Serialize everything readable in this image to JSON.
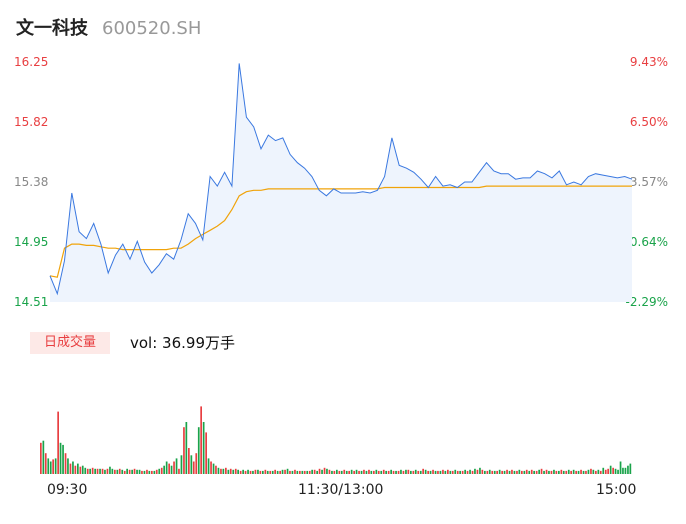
{
  "header": {
    "name": "文一科技",
    "code": "600520.SH"
  },
  "chart_data": {
    "type": "line",
    "price_axis": {
      "ticks": [
        "16.25",
        "15.82",
        "15.38",
        "14.95",
        "14.51"
      ],
      "ylim": [
        14.51,
        16.25
      ]
    },
    "pct_axis": {
      "ticks": [
        "9.43%",
        "6.50%",
        "3.57%",
        "0.64%",
        "-2.29%"
      ]
    },
    "time_labels": [
      "09:30",
      "11:30/13:00",
      "15:00"
    ],
    "colors": {
      "price": "#3a78e0",
      "avg": "#f0a30a",
      "up": "#e83f41",
      "down": "#1aa34a",
      "fill": "#eef4fd"
    },
    "series": [
      {
        "name": "price",
        "x": [
          0,
          3,
          6,
          9,
          12,
          15,
          18,
          21,
          24,
          27,
          30,
          33,
          36,
          39,
          42,
          45,
          48,
          51,
          54,
          57,
          60,
          63,
          66,
          69,
          72,
          75,
          78,
          81,
          84,
          87,
          90,
          93,
          96,
          99,
          102,
          105,
          108,
          111,
          114,
          117,
          120,
          123,
          126,
          129,
          132,
          135,
          138,
          141,
          144,
          147,
          150,
          153,
          156,
          159,
          162,
          165,
          168,
          171,
          174,
          177,
          180,
          183,
          186,
          189,
          192,
          195,
          198,
          201,
          204,
          207,
          210,
          213,
          216,
          219,
          222,
          225,
          228,
          231,
          234,
          237,
          240
        ],
        "values": [
          14.7,
          14.57,
          14.81,
          15.3,
          15.02,
          14.97,
          15.08,
          14.93,
          14.72,
          14.85,
          14.93,
          14.82,
          14.95,
          14.8,
          14.72,
          14.78,
          14.86,
          14.82,
          14.96,
          15.15,
          15.08,
          14.96,
          15.42,
          15.35,
          15.45,
          15.35,
          16.24,
          15.85,
          15.78,
          15.62,
          15.72,
          15.68,
          15.7,
          15.58,
          15.52,
          15.48,
          15.42,
          15.32,
          15.28,
          15.33,
          15.3,
          15.3,
          15.3,
          15.31,
          15.3,
          15.32,
          15.42,
          15.7,
          15.5,
          15.48,
          15.45,
          15.4,
          15.34,
          15.42,
          15.35,
          15.36,
          15.34,
          15.38,
          15.38,
          15.45,
          15.52,
          15.46,
          15.44,
          15.44,
          15.4,
          15.41,
          15.41,
          15.46,
          15.44,
          15.41,
          15.46,
          15.36,
          15.38,
          15.36,
          15.42,
          15.44,
          15.43,
          15.42,
          15.41,
          15.42,
          15.4
        ]
      },
      {
        "name": "avg",
        "x": [
          0,
          3,
          6,
          9,
          12,
          15,
          18,
          21,
          24,
          27,
          30,
          33,
          36,
          39,
          42,
          45,
          48,
          51,
          54,
          57,
          60,
          63,
          66,
          69,
          72,
          75,
          78,
          81,
          84,
          87,
          90,
          93,
          96,
          99,
          102,
          105,
          108,
          111,
          114,
          117,
          120,
          123,
          126,
          129,
          132,
          135,
          138,
          141,
          144,
          147,
          150,
          153,
          156,
          159,
          162,
          165,
          168,
          171,
          174,
          177,
          180,
          183,
          186,
          189,
          192,
          195,
          198,
          201,
          204,
          207,
          210,
          213,
          216,
          219,
          222,
          225,
          228,
          231,
          234,
          237,
          240
        ],
        "values": [
          14.7,
          14.69,
          14.9,
          14.93,
          14.93,
          14.92,
          14.92,
          14.91,
          14.9,
          14.9,
          14.89,
          14.89,
          14.89,
          14.89,
          14.89,
          14.89,
          14.89,
          14.9,
          14.9,
          14.93,
          14.97,
          15.0,
          15.03,
          15.06,
          15.1,
          15.18,
          15.28,
          15.31,
          15.32,
          15.32,
          15.33,
          15.33,
          15.33,
          15.33,
          15.33,
          15.33,
          15.33,
          15.33,
          15.33,
          15.33,
          15.33,
          15.33,
          15.33,
          15.33,
          15.33,
          15.33,
          15.34,
          15.34,
          15.34,
          15.34,
          15.34,
          15.34,
          15.34,
          15.34,
          15.34,
          15.34,
          15.34,
          15.34,
          15.34,
          15.34,
          15.35,
          15.35,
          15.35,
          15.35,
          15.35,
          15.35,
          15.35,
          15.35,
          15.35,
          15.35,
          15.35,
          15.35,
          15.35,
          15.35,
          15.35,
          15.35,
          15.35,
          15.35,
          15.35,
          15.35,
          15.35
        ]
      }
    ],
    "volume": {
      "label": "日成交量",
      "summary": "vol: 36.99万手",
      "bars": [
        0.3,
        0.32,
        0.2,
        0.15,
        0.12,
        0.14,
        0.15,
        0.6,
        0.3,
        0.28,
        0.2,
        0.15,
        0.1,
        0.12,
        0.08,
        0.1,
        0.07,
        0.08,
        0.06,
        0.05,
        0.05,
        0.06,
        0.05,
        0.05,
        0.05,
        0.05,
        0.04,
        0.05,
        0.07,
        0.05,
        0.04,
        0.04,
        0.05,
        0.04,
        0.03,
        0.05,
        0.04,
        0.04,
        0.05,
        0.04,
        0.04,
        0.03,
        0.03,
        0.04,
        0.03,
        0.03,
        0.03,
        0.04,
        0.05,
        0.06,
        0.08,
        0.12,
        0.1,
        0.08,
        0.12,
        0.15,
        0.05,
        0.18,
        0.45,
        0.5,
        0.25,
        0.18,
        0.12,
        0.2,
        0.45,
        0.65,
        0.5,
        0.4,
        0.15,
        0.12,
        0.1,
        0.08,
        0.06,
        0.05,
        0.05,
        0.06,
        0.04,
        0.05,
        0.04,
        0.05,
        0.04,
        0.03,
        0.04,
        0.03,
        0.04,
        0.03,
        0.03,
        0.04,
        0.04,
        0.03,
        0.03,
        0.04,
        0.03,
        0.03,
        0.03,
        0.04,
        0.03,
        0.03,
        0.04,
        0.04,
        0.05,
        0.03,
        0.03,
        0.04,
        0.03,
        0.03,
        0.03,
        0.03,
        0.03,
        0.03,
        0.04,
        0.04,
        0.03,
        0.05,
        0.04,
        0.06,
        0.05,
        0.04,
        0.03,
        0.03,
        0.04,
        0.03,
        0.03,
        0.04,
        0.03,
        0.03,
        0.04,
        0.03,
        0.04,
        0.03,
        0.03,
        0.04,
        0.03,
        0.04,
        0.03,
        0.03,
        0.04,
        0.03,
        0.03,
        0.04,
        0.03,
        0.03,
        0.04,
        0.03,
        0.03,
        0.03,
        0.04,
        0.03,
        0.04,
        0.04,
        0.03,
        0.03,
        0.04,
        0.03,
        0.03,
        0.05,
        0.04,
        0.03,
        0.03,
        0.04,
        0.03,
        0.03,
        0.03,
        0.04,
        0.03,
        0.04,
        0.03,
        0.03,
        0.04,
        0.03,
        0.03,
        0.03,
        0.04,
        0.03,
        0.04,
        0.03,
        0.05,
        0.04,
        0.06,
        0.04,
        0.03,
        0.03,
        0.04,
        0.03,
        0.03,
        0.03,
        0.04,
        0.03,
        0.03,
        0.04,
        0.03,
        0.04,
        0.03,
        0.03,
        0.04,
        0.03,
        0.03,
        0.04,
        0.03,
        0.04,
        0.03,
        0.03,
        0.04,
        0.05,
        0.03,
        0.04,
        0.03,
        0.03,
        0.04,
        0.03,
        0.03,
        0.04,
        0.03,
        0.03,
        0.04,
        0.03,
        0.04,
        0.03,
        0.03,
        0.04,
        0.03,
        0.03,
        0.04,
        0.05,
        0.04,
        0.03,
        0.04,
        0.03,
        0.06,
        0.04,
        0.05,
        0.08,
        0.06,
        0.05,
        0.04,
        0.12,
        0.06,
        0.06,
        0.08,
        0.1
      ],
      "dirs": [
        "u",
        "d",
        "u",
        "d",
        "d",
        "u",
        "d",
        "u",
        "d",
        "d",
        "u",
        "d",
        "u",
        "d",
        "u",
        "d",
        "u",
        "d",
        "d",
        "u",
        "d",
        "u",
        "d",
        "u",
        "d",
        "u",
        "d",
        "u",
        "d",
        "d",
        "u",
        "d",
        "u",
        "d",
        "u",
        "d",
        "u",
        "d",
        "u",
        "d",
        "d",
        "u",
        "d",
        "u",
        "d",
        "u",
        "d",
        "u",
        "d",
        "u",
        "d",
        "d",
        "u",
        "d",
        "u",
        "d",
        "u",
        "d",
        "u",
        "d",
        "u",
        "d",
        "u",
        "u",
        "d",
        "u",
        "d",
        "u",
        "d",
        "u",
        "d",
        "u",
        "d",
        "u",
        "d",
        "u",
        "d",
        "u",
        "d",
        "u",
        "d",
        "u",
        "d",
        "u",
        "d",
        "u",
        "d",
        "u",
        "d",
        "u",
        "d",
        "u",
        "d",
        "u",
        "d",
        "u",
        "d",
        "u",
        "d",
        "u",
        "d",
        "u",
        "d",
        "u",
        "d",
        "u",
        "d",
        "u",
        "d",
        "u",
        "d",
        "u",
        "d",
        "u",
        "d",
        "u",
        "d",
        "u",
        "d",
        "u",
        "d",
        "u",
        "d",
        "u",
        "d",
        "u",
        "d",
        "u",
        "d",
        "u",
        "d",
        "u",
        "d",
        "u",
        "d",
        "u",
        "d",
        "u",
        "d",
        "u",
        "d",
        "u",
        "d",
        "u",
        "d",
        "u",
        "d",
        "u",
        "d",
        "u",
        "d",
        "u",
        "d",
        "u",
        "d",
        "u",
        "d",
        "u",
        "d",
        "u",
        "d",
        "u",
        "d",
        "u",
        "d",
        "u",
        "d",
        "u",
        "d",
        "u",
        "d",
        "u",
        "d",
        "u",
        "d",
        "u",
        "d",
        "u",
        "d",
        "u",
        "d",
        "u",
        "d",
        "u",
        "d",
        "u",
        "d",
        "u",
        "d",
        "u",
        "d",
        "u",
        "d",
        "u",
        "d",
        "u",
        "d",
        "u",
        "d",
        "u",
        "d",
        "u",
        "d",
        "u",
        "d",
        "u",
        "d",
        "u",
        "d",
        "u",
        "d",
        "u",
        "d",
        "u",
        "d",
        "u",
        "d",
        "u",
        "d",
        "u",
        "d",
        "u",
        "d",
        "u",
        "d",
        "u",
        "d",
        "u",
        "d",
        "u",
        "u",
        "d",
        "u",
        "d"
      ]
    }
  }
}
